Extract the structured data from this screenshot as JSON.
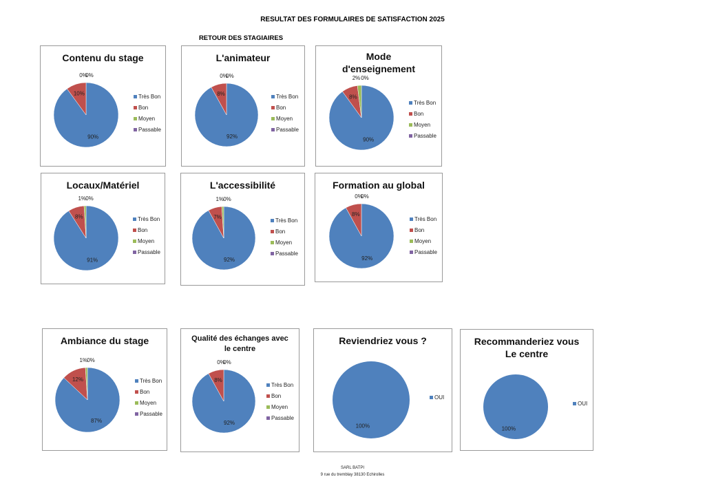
{
  "header": {
    "title": "RESULTAT DES FORMULAIRES DE SATISFACTION  2025",
    "subtitle": "RETOUR DES STAGIAIRES"
  },
  "footer": {
    "company": "SARL BATPI",
    "address": "9 rue du tremblay 38130 Echirolles"
  },
  "colors": {
    "Très Bon": "#4f81bd",
    "Bon": "#c0504d",
    "Moyen": "#9bbb59",
    "Passable": "#8064a2",
    "OUI": "#4f81bd"
  },
  "chart_data": [
    {
      "type": "pie",
      "title": "Contenu du stage",
      "categories": [
        "Très Bon",
        "Bon",
        "Moyen",
        "Passable"
      ],
      "values": [
        90,
        10,
        0,
        0
      ],
      "labels": [
        "90%",
        "10%",
        "0%",
        "0%"
      ]
    },
    {
      "type": "pie",
      "title": "L'animateur",
      "categories": [
        "Très Bon",
        "Bon",
        "Moyen",
        "Passable"
      ],
      "values": [
        92,
        8,
        0,
        0
      ],
      "labels": [
        "92%",
        "8%",
        "0%",
        "0%"
      ]
    },
    {
      "type": "pie",
      "title": "Mode d'enseignement",
      "categories": [
        "Très Bon",
        "Bon",
        "Moyen",
        "Passable"
      ],
      "values": [
        90,
        8,
        2,
        0
      ],
      "labels": [
        "90%",
        "8%",
        "2%",
        "0%"
      ]
    },
    {
      "type": "pie",
      "title": "Locaux/Matériel",
      "categories": [
        "Très Bon",
        "Bon",
        "Moyen",
        "Passable"
      ],
      "values": [
        91,
        8,
        1,
        0
      ],
      "labels": [
        "91%",
        "8%",
        "1%",
        "0%"
      ]
    },
    {
      "type": "pie",
      "title": "L'accessibilité",
      "categories": [
        "Très Bon",
        "Bon",
        "Moyen",
        "Passable"
      ],
      "values": [
        92,
        7,
        1,
        0
      ],
      "labels": [
        "92%",
        "7%",
        "1%",
        "0%"
      ]
    },
    {
      "type": "pie",
      "title": "Formation au global",
      "categories": [
        "Très Bon",
        "Bon",
        "Moyen",
        "Passable"
      ],
      "values": [
        92,
        8,
        0,
        0
      ],
      "labels": [
        "92%",
        "8%",
        "0%",
        "0%"
      ]
    },
    {
      "type": "pie",
      "title": "Ambiance du stage",
      "categories": [
        "Très Bon",
        "Bon",
        "Moyen",
        "Passable"
      ],
      "values": [
        87,
        12,
        1,
        0
      ],
      "labels": [
        "87%",
        "12%",
        "1%",
        "0%"
      ]
    },
    {
      "type": "pie",
      "title": "Qualité des échanges avec le centre",
      "categories": [
        "Très Bon",
        "Bon",
        "Moyen",
        "Passable"
      ],
      "values": [
        92,
        8,
        0,
        0
      ],
      "labels": [
        "92%",
        "8%",
        "0%",
        "0%"
      ]
    },
    {
      "type": "pie",
      "title": "Reviendriez vous ?",
      "categories": [
        "OUI"
      ],
      "values": [
        100
      ],
      "labels": [
        "100%"
      ]
    },
    {
      "type": "pie",
      "title": "Recommanderiez vous Le centre",
      "categories": [
        "OUI"
      ],
      "values": [
        100
      ],
      "labels": [
        "100%"
      ]
    }
  ]
}
